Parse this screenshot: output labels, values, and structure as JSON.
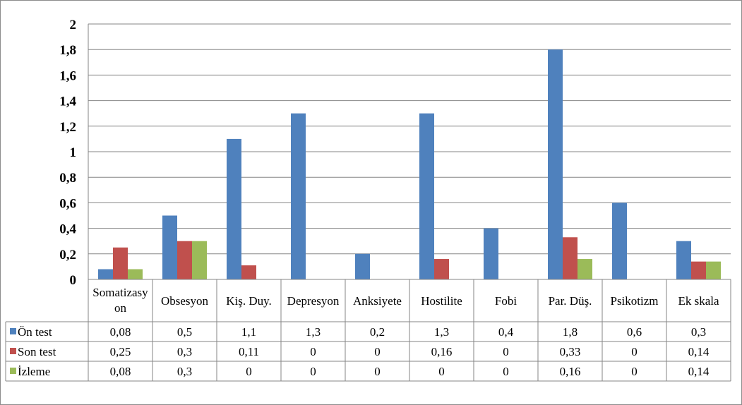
{
  "chart_data": {
    "type": "bar",
    "title": "",
    "xlabel": "",
    "ylabel": "",
    "ylim": [
      0,
      2
    ],
    "yticks": [
      "0",
      "0,2",
      "0,4",
      "0,6",
      "0,8",
      "1",
      "1,2",
      "1,4",
      "1,6",
      "1,8",
      "2"
    ],
    "grid": true,
    "legend": "data-table",
    "categories": [
      "Somatizasyon",
      "Obsesyon",
      "Kiş. Duy.",
      "Depresyon",
      "Anksiyete",
      "Hostilite",
      "Fobi",
      "Par. Düş.",
      "Psikotizm",
      "Ek skala"
    ],
    "category_lines": [
      [
        "Somatizasy",
        "on"
      ],
      [
        "Obsesyon"
      ],
      [
        "Kiş. Duy."
      ],
      [
        "Depresyon"
      ],
      [
        "Anksiyete"
      ],
      [
        "Hostilite"
      ],
      [
        "Fobi"
      ],
      [
        "Par. Düş."
      ],
      [
        "Psikotizm"
      ],
      [
        "Ek skala"
      ]
    ],
    "series": [
      {
        "name": "Ön test",
        "color": "#4f81bd",
        "values": [
          0.08,
          0.5,
          1.1,
          1.3,
          0.2,
          1.3,
          0.4,
          1.8,
          0.6,
          0.3
        ],
        "labels": [
          "0,08",
          "0,5",
          "1,1",
          "1,3",
          "0,2",
          "1,3",
          "0,4",
          "1,8",
          "0,6",
          "0,3"
        ]
      },
      {
        "name": "Son test",
        "color": "#c0504d",
        "values": [
          0.25,
          0.3,
          0.11,
          0,
          0,
          0.16,
          0,
          0.33,
          0,
          0.14
        ],
        "labels": [
          "0,25",
          "0,3",
          "0,11",
          "0",
          "0",
          "0,16",
          "0",
          "0,33",
          "0",
          "0,14"
        ]
      },
      {
        "name": "İzleme",
        "color": "#9bbb59",
        "values": [
          0.08,
          0.3,
          0,
          0,
          0,
          0,
          0,
          0.16,
          0,
          0.14
        ],
        "labels": [
          "0,08",
          "0,3",
          "0",
          "0",
          "0",
          "0",
          "0",
          "0,16",
          "0",
          "0,14"
        ]
      }
    ]
  }
}
